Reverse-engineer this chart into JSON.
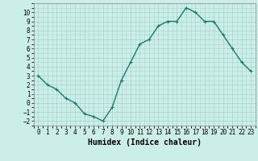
{
  "x": [
    0,
    1,
    2,
    3,
    4,
    5,
    6,
    7,
    8,
    9,
    10,
    11,
    12,
    13,
    14,
    15,
    16,
    17,
    18,
    19,
    20,
    21,
    22,
    23
  ],
  "y": [
    3.0,
    2.0,
    1.5,
    0.5,
    0.0,
    -1.2,
    -1.5,
    -2.0,
    -0.5,
    2.5,
    4.5,
    6.5,
    7.0,
    8.5,
    9.0,
    9.0,
    10.5,
    10.0,
    9.0,
    9.0,
    7.5,
    6.0,
    4.5,
    3.5
  ],
  "line_color": "#1a7a6e",
  "marker": "+",
  "marker_size": 3,
  "linewidth": 1.0,
  "bg_color": "#cceee8",
  "grid_color": "#aad8d0",
  "xlabel": "Humidex (Indice chaleur)",
  "xlabel_fontsize": 7,
  "xlabel_fontweight": "bold",
  "xlim": [
    -0.5,
    23.5
  ],
  "ylim": [
    -2.5,
    11.0
  ],
  "yticks": [
    -2,
    -1,
    0,
    1,
    2,
    3,
    4,
    5,
    6,
    7,
    8,
    9,
    10
  ],
  "xticks": [
    0,
    1,
    2,
    3,
    4,
    5,
    6,
    7,
    8,
    9,
    10,
    11,
    12,
    13,
    14,
    15,
    16,
    17,
    18,
    19,
    20,
    21,
    22,
    23
  ],
  "tick_fontsize": 5.5
}
